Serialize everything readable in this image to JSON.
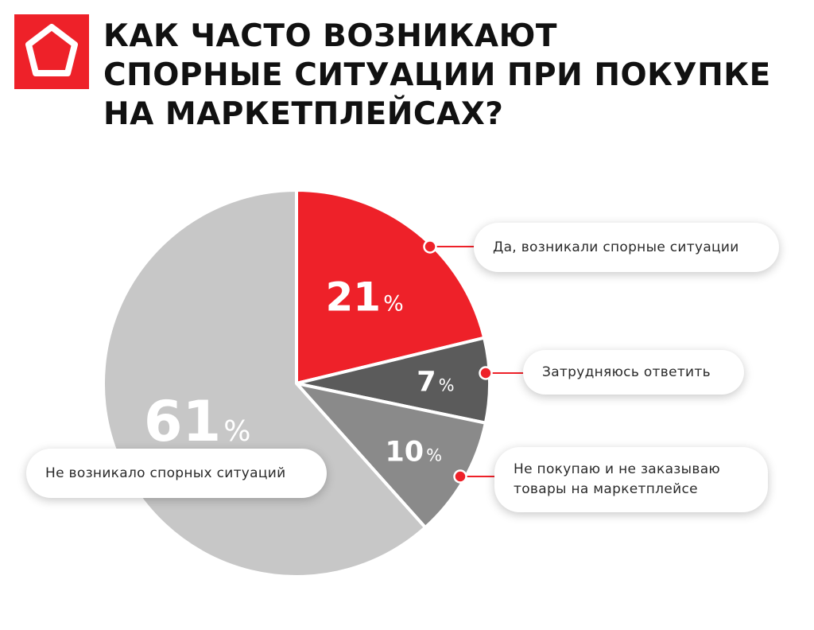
{
  "title_lines": [
    "Как часто возникают",
    "спорные ситуации при покупке",
    "на маркетплейсах?"
  ],
  "colors": {
    "accent_red": "#ee2129",
    "dark_gray": "#5b5b5b",
    "mid_gray": "#8a8a8a",
    "light_gray": "#c7c7c7",
    "label_dark": "#ffffff"
  },
  "chart_data": {
    "type": "pie",
    "title": "Как часто возникают спорные ситуации при покупке на маркетплейсах?",
    "slices": [
      {
        "label": "Да, возникали спорные ситуации",
        "value": 21,
        "display": "21",
        "unit": "%",
        "color": "#ee2129"
      },
      {
        "label": "Затрудняюсь ответить",
        "value": 7,
        "display": "7",
        "unit": "%",
        "color": "#5b5b5b"
      },
      {
        "label": "Не покупаю и не заказываю товары на маркетплейсе",
        "label_lines": [
          "Не покупаю и не заказываю",
          "товары на маркетплейсе"
        ],
        "value": 10,
        "display": "10",
        "unit": "%",
        "color": "#8a8a8a"
      },
      {
        "label": "Не возникало спорных ситуаций",
        "value": 61,
        "display": "61",
        "unit": "%",
        "color": "#c7c7c7"
      }
    ]
  }
}
